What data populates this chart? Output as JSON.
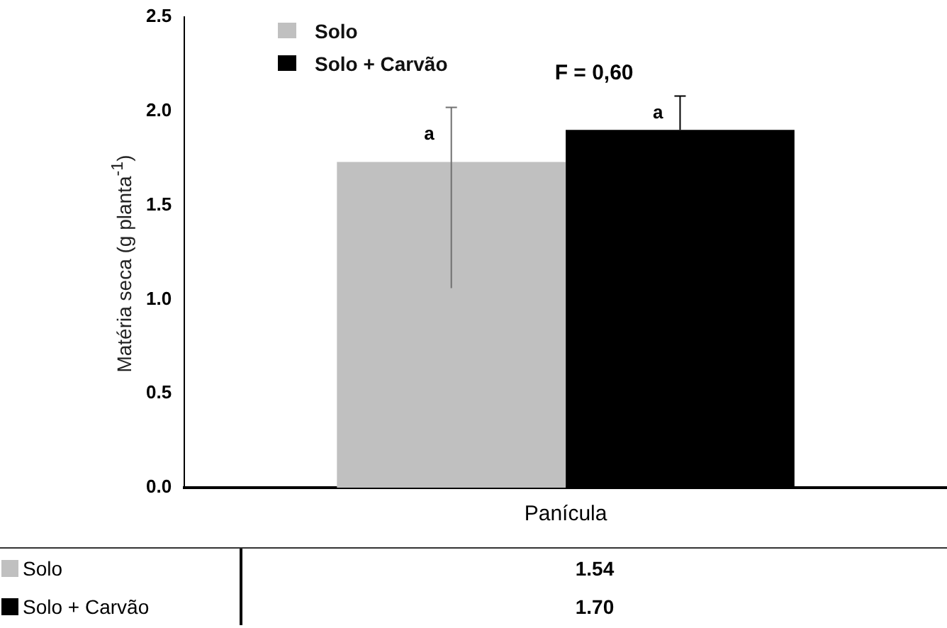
{
  "chart_data": {
    "type": "bar",
    "ylabel": "Matéria seca (g planta$^{-1}$)",
    "categories": [
      "Panícula"
    ],
    "series": [
      {
        "name": "Solo",
        "color": "#c0c0c0",
        "values": [
          1.73
        ],
        "errors": [
          [
            1.06,
            2.02
          ]
        ]
      },
      {
        "name": "Solo + Carvão",
        "color": "#000000",
        "values": [
          1.9
        ],
        "errors": [
          [
            1.9,
            2.08
          ]
        ]
      }
    ],
    "ylim": [
      0,
      2.5
    ],
    "yticks": [
      {
        "value": 0,
        "label": "0.0"
      },
      {
        "value": 0.5,
        "label": "0.5"
      },
      {
        "value": 1,
        "label": "1.0"
      },
      {
        "value": 1.5,
        "label": "1.5"
      },
      {
        "value": 2,
        "label": "2.0"
      },
      {
        "value": 2.5,
        "label": "2.5"
      }
    ],
    "annotations": [
      "a",
      "a",
      "F = 0,60",
      "1.54",
      "1.70"
    ],
    "legend": "top left",
    "grid": false
  }
}
